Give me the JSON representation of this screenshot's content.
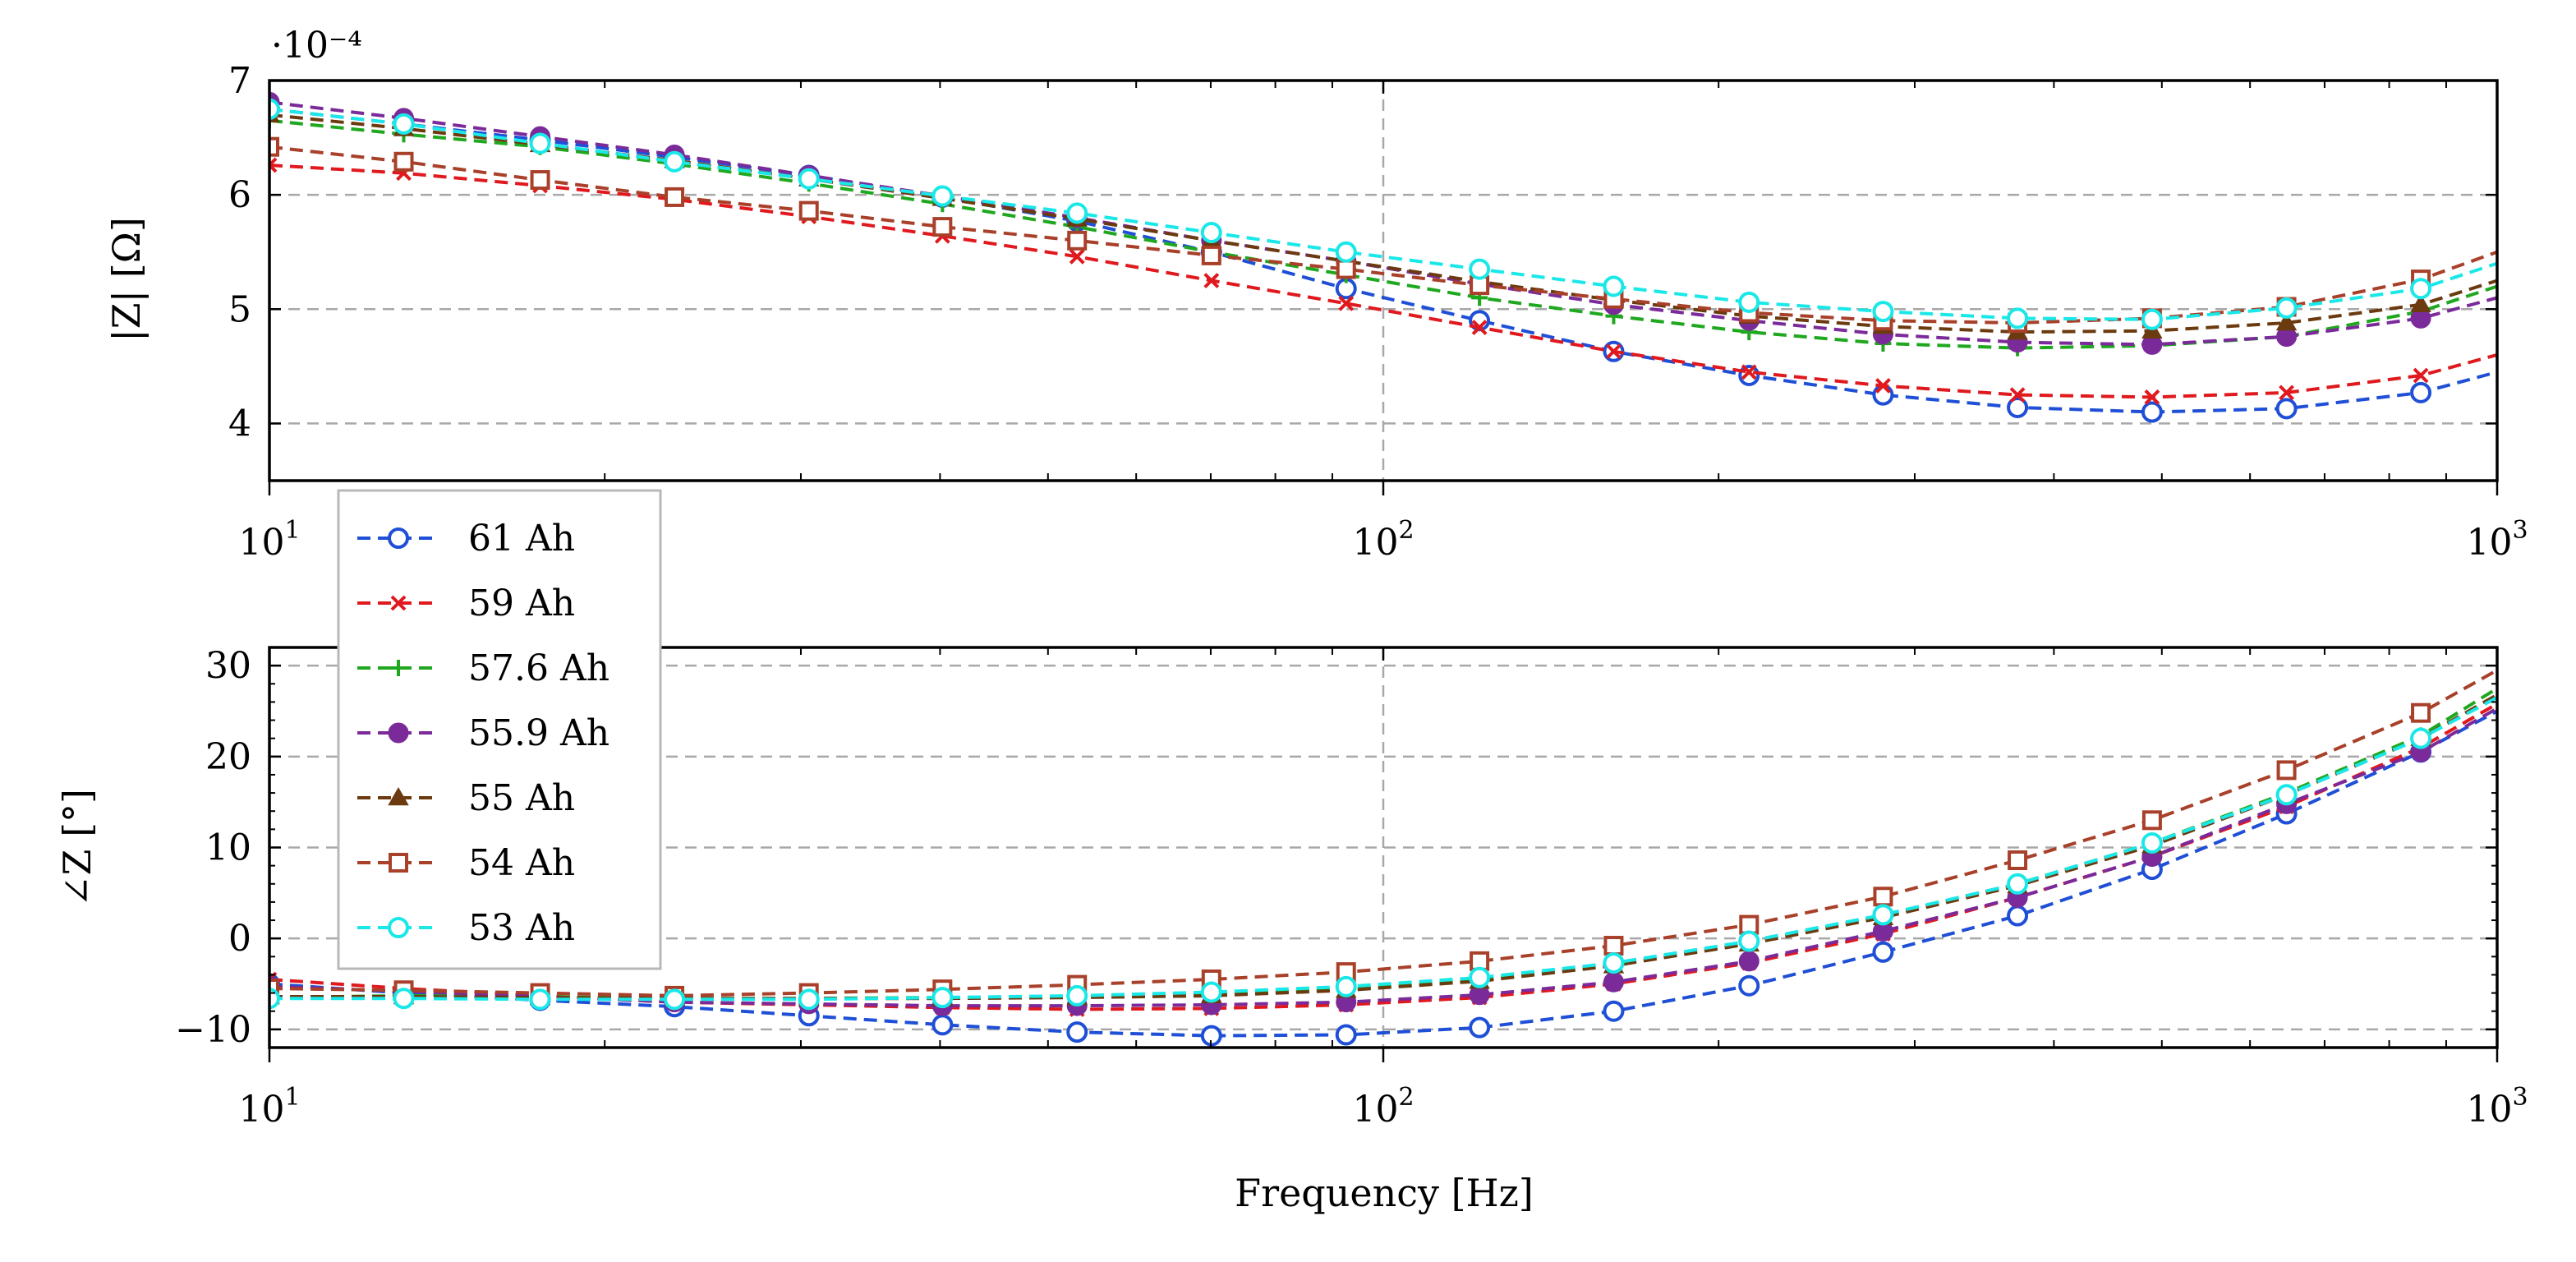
{
  "chart_data": [
    {
      "type": "line",
      "panel": "magnitude",
      "ylabel": "|Z| [Ω]",
      "scale_note": "·10⁻⁴",
      "x_scale": "log",
      "xlim": [
        10,
        1000
      ],
      "ylim": [
        3.5,
        7
      ],
      "x_ticks": [
        10,
        100,
        1000
      ],
      "x_tick_labels": [
        {
          "base": "10",
          "exp": "1"
        },
        {
          "base": "10",
          "exp": "2"
        },
        {
          "base": "10",
          "exp": "3"
        }
      ],
      "y_ticks": [
        4,
        5,
        6,
        7
      ],
      "y_tick_labels": [
        "4",
        "5",
        "6",
        "7"
      ],
      "grid": "dashed",
      "x": [
        10,
        13.2,
        17.5,
        23.1,
        30.5,
        40.2,
        53.1,
        70.1,
        92.6,
        122,
        161,
        213,
        281,
        371,
        490,
        647,
        854,
        1000
      ],
      "series": [
        {
          "name": "61 Ah",
          "values": [
            6.75,
            6.62,
            6.48,
            6.33,
            6.17,
            5.98,
            5.77,
            5.5,
            5.18,
            4.9,
            4.63,
            4.42,
            4.25,
            4.14,
            4.1,
            4.13,
            4.27,
            4.45
          ]
        },
        {
          "name": "59 Ah",
          "values": [
            6.26,
            6.19,
            6.08,
            5.96,
            5.81,
            5.64,
            5.46,
            5.25,
            5.05,
            4.84,
            4.63,
            4.45,
            4.33,
            4.25,
            4.23,
            4.27,
            4.42,
            4.6
          ]
        },
        {
          "name": "57.6 Ah",
          "values": [
            6.65,
            6.53,
            6.42,
            6.27,
            6.1,
            5.92,
            5.72,
            5.5,
            5.3,
            5.1,
            4.94,
            4.8,
            4.7,
            4.66,
            4.68,
            4.76,
            4.98,
            5.2
          ]
        },
        {
          "name": "55.9 Ah",
          "values": [
            6.81,
            6.67,
            6.51,
            6.35,
            6.17,
            5.99,
            5.8,
            5.6,
            5.42,
            5.22,
            5.04,
            4.9,
            4.78,
            4.71,
            4.69,
            4.76,
            4.92,
            5.1
          ]
        },
        {
          "name": "55 Ah",
          "values": [
            6.7,
            6.58,
            6.44,
            6.3,
            6.14,
            5.97,
            5.79,
            5.6,
            5.42,
            5.24,
            5.08,
            4.94,
            4.85,
            4.8,
            4.81,
            4.88,
            5.04,
            5.25
          ]
        },
        {
          "name": "54 Ah",
          "values": [
            6.42,
            6.29,
            6.13,
            5.98,
            5.86,
            5.72,
            5.6,
            5.47,
            5.35,
            5.21,
            5.09,
            4.97,
            4.9,
            4.88,
            4.92,
            5.02,
            5.26,
            5.5
          ]
        },
        {
          "name": "53 Ah",
          "values": [
            6.75,
            6.62,
            6.45,
            6.29,
            6.14,
            5.99,
            5.84,
            5.67,
            5.5,
            5.35,
            5.2,
            5.06,
            4.98,
            4.92,
            4.91,
            5.01,
            5.18,
            5.4
          ]
        }
      ]
    },
    {
      "type": "line",
      "panel": "phase",
      "ylabel": "∠Z [°]",
      "xlabel": "Frequency [Hz]",
      "x_scale": "log",
      "xlim": [
        10,
        1000
      ],
      "ylim": [
        -12,
        32
      ],
      "x_ticks": [
        10,
        100,
        1000
      ],
      "x_tick_labels": [
        {
          "base": "10",
          "exp": "1"
        },
        {
          "base": "10",
          "exp": "2"
        },
        {
          "base": "10",
          "exp": "3"
        }
      ],
      "y_ticks": [
        -10,
        0,
        10,
        20,
        30
      ],
      "y_tick_labels": [
        "−10",
        "0",
        "10",
        "20",
        "30"
      ],
      "grid": "dashed",
      "x": [
        10,
        13.2,
        17.5,
        23.1,
        30.5,
        40.2,
        53.1,
        70.1,
        92.6,
        122,
        161,
        213,
        281,
        371,
        490,
        647,
        854,
        1000
      ],
      "series": [
        {
          "name": "61 Ah",
          "values": [
            -5,
            -6,
            -6.8,
            -7.5,
            -8.5,
            -9.5,
            -10.3,
            -10.7,
            -10.6,
            -9.8,
            -8,
            -5.2,
            -1.5,
            2.5,
            7.6,
            13.7,
            20.5,
            25
          ]
        },
        {
          "name": "59 Ah",
          "values": [
            -4.5,
            -5.5,
            -6.3,
            -7,
            -7.3,
            -7.6,
            -7.8,
            -7.7,
            -7.3,
            -6.5,
            -5,
            -2.7,
            0.5,
            4.5,
            9,
            14.5,
            21,
            25.8
          ]
        },
        {
          "name": "57.6 Ah",
          "values": [
            -6.5,
            -6.3,
            -6.4,
            -6.6,
            -6.6,
            -6.5,
            -6.4,
            -6.1,
            -5.6,
            -4.6,
            -2.9,
            -0.5,
            2.5,
            6,
            10.5,
            16,
            22.3,
            27.5
          ]
        },
        {
          "name": "55.9 Ah",
          "values": [
            -5.3,
            -5.8,
            -6.4,
            -7,
            -7.2,
            -7.4,
            -7.4,
            -7.3,
            -7,
            -6.2,
            -4.8,
            -2.5,
            0.8,
            4.5,
            9,
            14.8,
            20.5,
            25.3
          ]
        },
        {
          "name": "55 Ah",
          "values": [
            -6.4,
            -6.4,
            -6.5,
            -6.6,
            -6.6,
            -6.6,
            -6.5,
            -6.3,
            -5.7,
            -4.7,
            -3,
            -0.6,
            2.3,
            5.8,
            10.2,
            15.8,
            22,
            26.8
          ]
        },
        {
          "name": "54 Ah",
          "values": [
            -5.5,
            -5.7,
            -6,
            -6.3,
            -6,
            -5.6,
            -5.1,
            -4.5,
            -3.7,
            -2.5,
            -0.8,
            1.5,
            4.6,
            8.6,
            13,
            18.5,
            24.8,
            29.5
          ]
        },
        {
          "name": "53 Ah",
          "values": [
            -6.6,
            -6.6,
            -6.7,
            -6.7,
            -6.7,
            -6.5,
            -6.3,
            -5.9,
            -5.3,
            -4.3,
            -2.7,
            -0.3,
            2.6,
            6,
            10.5,
            15.8,
            22,
            26.5
          ]
        }
      ]
    }
  ],
  "legend": {
    "placement": "left, between panels",
    "entries": [
      {
        "label": "61 Ah",
        "color": "#1f4fd6",
        "marker": "circle-open"
      },
      {
        "label": "59 Ah",
        "color": "#e0191e",
        "marker": "x"
      },
      {
        "label": "57.6 Ah",
        "color": "#1fa81f",
        "marker": "plus"
      },
      {
        "label": "55.9 Ah",
        "color": "#7b2a9a",
        "marker": "circle-filled"
      },
      {
        "label": "55 Ah",
        "color": "#6b3a0e",
        "marker": "triangle-filled"
      },
      {
        "label": "54 Ah",
        "color": "#a8402a",
        "marker": "square-open"
      },
      {
        "label": "53 Ah",
        "color": "#1ae8e8",
        "marker": "circle-open"
      }
    ]
  }
}
